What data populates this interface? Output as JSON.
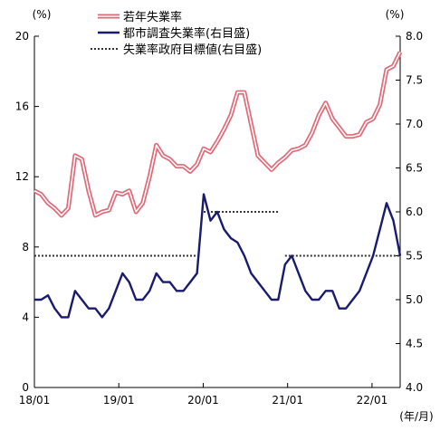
{
  "chart_data": {
    "type": "line",
    "units": {
      "left": "(%)",
      "right": "(%)",
      "x": "(年/月)"
    },
    "x_labels": [
      "18/01",
      "19/01",
      "20/01",
      "21/01",
      "22/01"
    ],
    "y_left": {
      "ticks": [
        "0",
        "4",
        "8",
        "12",
        "16",
        "20"
      ],
      "range": [
        0,
        20
      ]
    },
    "y_right": {
      "ticks": [
        "4.0",
        "4.5",
        "5.0",
        "5.5",
        "6.0",
        "6.5",
        "7.0",
        "7.5",
        "8.0"
      ],
      "range": [
        4.0,
        8.0
      ]
    },
    "legend": [
      {
        "name": "若年失業率",
        "style": "double-line",
        "color": "#e06a78"
      },
      {
        "name": "都市調査失業率(右目盛)",
        "style": "line",
        "color": "#1a1a6e"
      },
      {
        "name": "失業率政府目標値(右目盛)",
        "style": "dotted",
        "color": "#333333"
      }
    ],
    "series": [
      {
        "name": "若年失業率",
        "axis": "left",
        "color": "#e06a78",
        "values": [
          11.2,
          11.0,
          10.5,
          10.2,
          9.8,
          10.2,
          13.2,
          13.0,
          11.2,
          9.8,
          10.0,
          10.1,
          11.1,
          11.0,
          11.2,
          10.0,
          10.5,
          12.0,
          13.8,
          13.2,
          13.0,
          12.6,
          12.6,
          12.3,
          12.7,
          13.6,
          13.4,
          14.0,
          14.7,
          15.5,
          16.8,
          16.8,
          15.0,
          13.2,
          12.8,
          12.4,
          12.8,
          13.1,
          13.5,
          13.6,
          13.8,
          14.5,
          15.5,
          16.2,
          15.3,
          14.8,
          14.3,
          14.3,
          14.4,
          15.1,
          15.3,
          16.1,
          18.1,
          18.3,
          19.1
        ]
      },
      {
        "name": "都市調査失業率(右目盛)",
        "axis": "right",
        "color": "#1a1a6e",
        "values": [
          5.0,
          5.0,
          5.05,
          4.9,
          4.8,
          4.8,
          5.1,
          5.0,
          4.9,
          4.9,
          4.8,
          4.9,
          5.1,
          5.3,
          5.2,
          5.0,
          5.0,
          5.1,
          5.3,
          5.2,
          5.2,
          5.1,
          5.1,
          5.2,
          5.3,
          6.2,
          5.9,
          6.0,
          5.8,
          5.7,
          5.65,
          5.5,
          5.3,
          5.2,
          5.1,
          5.0,
          5.0,
          5.4,
          5.5,
          5.3,
          5.1,
          5.0,
          5.0,
          5.1,
          5.1,
          4.9,
          4.9,
          5.0,
          5.1,
          5.3,
          5.5,
          5.8,
          6.1,
          5.9,
          5.5
        ]
      }
    ],
    "targets": [
      {
        "name": "失業率政府目標値(右目盛)",
        "axis": "right",
        "segments": [
          {
            "from": 0,
            "to": 24,
            "value": 5.5
          },
          {
            "from": 25,
            "to": 36,
            "value": 6.0
          },
          {
            "from": 37,
            "to": 54,
            "value": 5.5
          }
        ]
      }
    ]
  }
}
